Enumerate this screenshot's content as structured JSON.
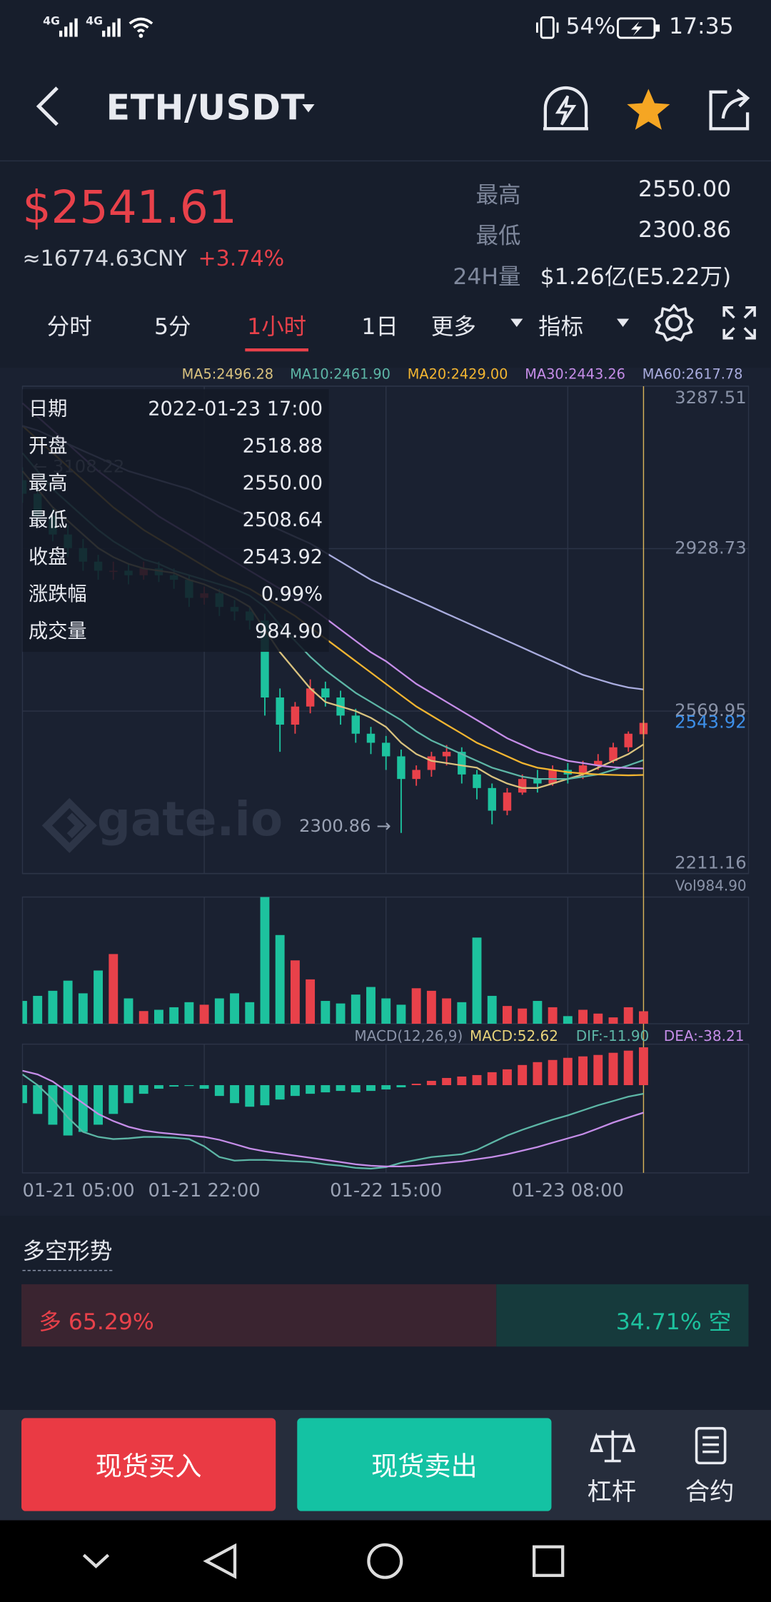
{
  "status_bar": {
    "signal_1": "4G",
    "signal_2": "4G",
    "battery": "54%",
    "time": "17:35"
  },
  "header": {
    "pair": "ETH/USDT"
  },
  "ticker": {
    "price": "$2541.61",
    "cny": "≈16774.63CNY",
    "change": "+3.74%",
    "stats": [
      {
        "label": "最高",
        "value": "2550.00"
      },
      {
        "label": "最低",
        "value": "2300.86"
      },
      {
        "label": "24H量",
        "value": "$1.26亿(E5.22万)"
      }
    ]
  },
  "tabs": [
    "分时",
    "5分",
    "1小时",
    "1日",
    "更多",
    "指标"
  ],
  "active_tab": 2,
  "chart_data": {
    "type": "candlestick",
    "categories": [
      "01-21 05:00",
      null,
      null,
      null,
      null,
      null,
      null,
      null,
      null,
      null,
      null,
      null,
      "01-21 22:00",
      null,
      null,
      null,
      null,
      null,
      null,
      null,
      null,
      null,
      null,
      null,
      "01-22 15:00",
      null,
      null,
      null,
      null,
      null,
      null,
      null,
      null,
      null,
      null,
      null,
      "01-23 08:00",
      null,
      null,
      null,
      null,
      null
    ],
    "open": [
      3080,
      3050,
      3000,
      2960,
      2930,
      2900,
      2880,
      2880,
      2870,
      2885,
      2870,
      2860,
      2820,
      2830,
      2800,
      2790,
      2770,
      2600,
      2540,
      2580,
      2620,
      2600,
      2560,
      2520,
      2500,
      2470,
      2420,
      2440,
      2470,
      2480,
      2430,
      2400,
      2350,
      2390,
      2420,
      2410,
      2440,
      2430,
      2450,
      2460,
      2490,
      2518.88
    ],
    "high": [
      3108.22,
      3070,
      3020,
      2980,
      2950,
      2915,
      2900,
      2895,
      2900,
      2900,
      2885,
      2870,
      2845,
      2840,
      2815,
      2800,
      2785,
      2620,
      2590,
      2640,
      2635,
      2615,
      2575,
      2535,
      2515,
      2485,
      2450,
      2480,
      2495,
      2490,
      2440,
      2410,
      2400,
      2430,
      2440,
      2450,
      2455,
      2460,
      2475,
      2500,
      2525,
      2550
    ],
    "low": [
      3030,
      2985,
      2945,
      2910,
      2880,
      2860,
      2860,
      2850,
      2860,
      2855,
      2840,
      2800,
      2805,
      2780,
      2770,
      2750,
      2560,
      2480,
      2520,
      2565,
      2580,
      2540,
      2500,
      2475,
      2440,
      2300.86,
      2405,
      2425,
      2450,
      2410,
      2375,
      2320,
      2340,
      2385,
      2390,
      2405,
      2410,
      2420,
      2440,
      2455,
      2480,
      2508.64
    ],
    "close": [
      3050,
      3000,
      2960,
      2930,
      2900,
      2880,
      2880,
      2870,
      2885,
      2870,
      2860,
      2820,
      2830,
      2800,
      2790,
      2770,
      2600,
      2540,
      2580,
      2620,
      2600,
      2560,
      2520,
      2500,
      2470,
      2420,
      2440,
      2470,
      2480,
      2430,
      2400,
      2350,
      2390,
      2420,
      2410,
      2440,
      2430,
      2450,
      2460,
      2490,
      2520,
      2543.92
    ],
    "up_color": "#e8414a",
    "down_color": "#1dc29e",
    "ylim": [
      2211.16,
      3287.51
    ],
    "yticks": [
      2211.16,
      2569.95,
      2928.73,
      3287.51
    ],
    "grid": true,
    "ma_series": [
      {
        "name": "MA5:2496.28",
        "color": "#d9c27e",
        "values": [
          3100,
          3060,
          3020,
          2990,
          2960,
          2930,
          2910,
          2895,
          2885,
          2880,
          2875,
          2860,
          2850,
          2835,
          2820,
          2800,
          2750,
          2700,
          2660,
          2620,
          2590,
          2580,
          2570,
          2555,
          2535,
          2500,
          2475,
          2460,
          2455,
          2450,
          2445,
          2425,
          2410,
          2400,
          2400,
          2410,
          2420,
          2430,
          2445,
          2460,
          2475,
          2496.28
        ]
      },
      {
        "name": "MA10:2461.90",
        "color": "#5db6a6",
        "values": [
          3140,
          3100,
          3060,
          3030,
          3000,
          2970,
          2945,
          2925,
          2905,
          2895,
          2880,
          2870,
          2860,
          2850,
          2840,
          2825,
          2800,
          2760,
          2725,
          2690,
          2660,
          2635,
          2610,
          2590,
          2570,
          2550,
          2525,
          2505,
          2490,
          2475,
          2460,
          2445,
          2435,
          2425,
          2420,
          2420,
          2420,
          2425,
          2430,
          2440,
          2450,
          2461.9
        ]
      },
      {
        "name": "MA20:2429.00",
        "color": "#f2b531",
        "values": [
          3200,
          3170,
          3140,
          3110,
          3080,
          3050,
          3020,
          2995,
          2970,
          2950,
          2930,
          2910,
          2890,
          2870,
          2855,
          2840,
          2820,
          2800,
          2780,
          2755,
          2730,
          2705,
          2680,
          2655,
          2630,
          2605,
          2580,
          2560,
          2540,
          2520,
          2500,
          2485,
          2470,
          2455,
          2445,
          2440,
          2435,
          2432,
          2430,
          2429,
          2428,
          2429.0
        ]
      },
      {
        "name": "MA30:2443.26",
        "color": "#c58de8",
        "values": [
          3250,
          3220,
          3190,
          3160,
          3130,
          3100,
          3075,
          3050,
          3025,
          3000,
          2980,
          2960,
          2940,
          2920,
          2900,
          2880,
          2860,
          2840,
          2820,
          2800,
          2775,
          2750,
          2725,
          2700,
          2680,
          2655,
          2630,
          2610,
          2590,
          2570,
          2550,
          2530,
          2510,
          2495,
          2480,
          2470,
          2460,
          2455,
          2450,
          2446,
          2444,
          2443.26
        ]
      },
      {
        "name": "MA60:2617.78",
        "color": "#a9acde",
        "values": [
          3200,
          3190,
          3175,
          3160,
          3145,
          3130,
          3115,
          3100,
          3090,
          3080,
          3070,
          3060,
          3045,
          3030,
          3015,
          3000,
          2985,
          2970,
          2955,
          2940,
          2920,
          2900,
          2880,
          2860,
          2845,
          2830,
          2815,
          2800,
          2785,
          2770,
          2755,
          2740,
          2725,
          2710,
          2695,
          2680,
          2665,
          2650,
          2640,
          2630,
          2622,
          2617.78
        ]
      }
    ],
    "annotations": {
      "max_label": "← 3108.22",
      "min_label": "2300.86 →"
    },
    "watermark": "gate.io",
    "tooltip": [
      {
        "label": "日期",
        "value": "2022-01-23 17:00"
      },
      {
        "label": "开盘",
        "value": "2518.88"
      },
      {
        "label": "最高",
        "value": "2550.00"
      },
      {
        "label": "最低",
        "value": "2508.64"
      },
      {
        "label": "收盘",
        "value": "2543.92"
      },
      {
        "label": "涨跌幅",
        "value": "0.99%"
      },
      {
        "label": "成交量",
        "value": "984.90"
      }
    ],
    "volume": {
      "label": "Vol984.90",
      "ylim": [
        0,
        10000
      ],
      "values": [
        1800,
        2200,
        2600,
        3400,
        2400,
        4200,
        5500,
        2000,
        1000,
        1100,
        1300,
        1700,
        1500,
        2000,
        2400,
        1700,
        10000,
        7000,
        5000,
        3500,
        1800,
        1600,
        2300,
        2900,
        2000,
        1500,
        2800,
        2600,
        2000,
        1700,
        6800,
        2200,
        1400,
        1200,
        1800,
        1300,
        600,
        1100,
        800,
        500,
        1300,
        984.9
      ]
    },
    "macd": {
      "title": "MACD(12,26,9)",
      "ylim": [
        -122,
        57
      ],
      "legend": [
        {
          "name": "MACD:52.62",
          "color": "#e8d37a"
        },
        {
          "name": "DIF:-11.90",
          "color": "#5db6a6"
        },
        {
          "name": "DEA:-38.21",
          "color": "#c58de8"
        }
      ],
      "histogram": [
        -25,
        -40,
        -55,
        -70,
        -65,
        -55,
        -40,
        -25,
        -12,
        -5,
        -2,
        -1,
        -5,
        -15,
        -25,
        -30,
        -28,
        -20,
        -15,
        -12,
        -10,
        -8,
        -10,
        -8,
        -6,
        -3,
        2,
        6,
        10,
        12,
        14,
        18,
        22,
        28,
        32,
        35,
        38,
        40,
        42,
        45,
        48,
        52.62
      ],
      "dif": [
        15,
        0,
        -20,
        -45,
        -65,
        -72,
        -75,
        -74,
        -72,
        -72,
        -73,
        -75,
        -85,
        -100,
        -105,
        -104,
        -104,
        -105,
        -106,
        -107,
        -110,
        -112,
        -115,
        -116,
        -114,
        -108,
        -104,
        -100,
        -98,
        -96,
        -90,
        -80,
        -70,
        -62,
        -55,
        -48,
        -42,
        -35,
        -28,
        -22,
        -16,
        -11.9
      ],
      "dea": [
        20,
        15,
        5,
        -10,
        -25,
        -40,
        -50,
        -58,
        -63,
        -66,
        -68,
        -70,
        -72,
        -76,
        -82,
        -88,
        -92,
        -95,
        -98,
        -101,
        -104,
        -107,
        -110,
        -112,
        -113,
        -113,
        -112,
        -110,
        -108,
        -106,
        -103,
        -100,
        -96,
        -91,
        -86,
        -80,
        -74,
        -68,
        -60,
        -52,
        -45,
        -38.21
      ]
    }
  },
  "sentiment": {
    "title": "多空形势",
    "long_label": "多 65.29%",
    "long": 65.29,
    "short_label": "34.71% 空",
    "short": 34.71
  },
  "actions": {
    "buy": "现货买入",
    "sell": "现货卖出",
    "margin": "杠杆",
    "futures": "合约"
  }
}
